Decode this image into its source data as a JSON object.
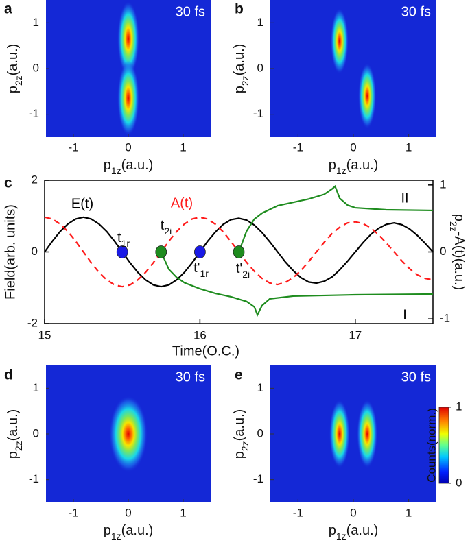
{
  "chart_data": [
    {
      "type": "heatmap",
      "panel": "a",
      "annotation": "30 fs",
      "xlabel": {
        "text": "p",
        "sub": "1z",
        "after": "(a.u.)"
      },
      "ylabel": {
        "text": "p",
        "sub": "2z",
        "after": "(a.u.)"
      },
      "xlim": [
        -1.5,
        1.5
      ],
      "ylim": [
        -1.5,
        1.5
      ],
      "xticks": [
        -1,
        0,
        1
      ],
      "yticks": [
        -1,
        0,
        1
      ],
      "peaks": {
        "x": [
          0,
          0
        ],
        "y": [
          0.65,
          -0.65
        ]
      }
    },
    {
      "type": "heatmap",
      "panel": "b",
      "annotation": "30 fs",
      "xlabel": {
        "text": "p",
        "sub": "1z",
        "after": "(a.u.)"
      },
      "ylabel": {
        "text": "p",
        "sub": "2z",
        "after": "(a.u.)"
      },
      "xlim": [
        -1.5,
        1.5
      ],
      "ylim": [
        -1.5,
        1.5
      ],
      "xticks": [
        -1,
        0,
        1
      ],
      "yticks": [
        -1,
        0,
        1
      ],
      "peaks": {
        "x": [
          -0.25,
          0.25
        ],
        "y": [
          0.6,
          -0.6
        ]
      }
    },
    {
      "type": "line",
      "panel": "c",
      "xlabel": "Time(O.C.)",
      "ylabel": "Field(arb. units)",
      "y2label": {
        "text": "p",
        "sub": "2z",
        "after": "-A(t)(a.u.)"
      },
      "xlim": [
        15,
        17.5
      ],
      "ylim": [
        -2,
        2
      ],
      "y2lim": [
        -1.07,
        1.07
      ],
      "xticks": [
        15,
        16,
        17
      ],
      "yticks": [
        -2,
        0,
        2
      ],
      "y2ticks": [
        -1,
        0,
        1
      ],
      "zero_line": true,
      "x": [
        15,
        15.05,
        15.1,
        15.15,
        15.2,
        15.25,
        15.3,
        15.35,
        15.4,
        15.45,
        15.5,
        15.55,
        15.6,
        15.65,
        15.7,
        15.75,
        15.8,
        15.85,
        15.9,
        15.95,
        16,
        16.05,
        16.1,
        16.15,
        16.2,
        16.25,
        16.3,
        16.35,
        16.4,
        16.45,
        16.5,
        16.55,
        16.6,
        16.65,
        16.7,
        16.75,
        16.8,
        16.85,
        16.9,
        16.95,
        17,
        17.05,
        17.1,
        17.15,
        17.2,
        17.25,
        17.3,
        17.35,
        17.4,
        17.45,
        17.5
      ],
      "series": [
        {
          "name": "E(t)",
          "color": "#000000",
          "values": [
            0,
            0.3,
            0.57,
            0.78,
            0.92,
            0.97,
            0.92,
            0.78,
            0.57,
            0.3,
            0,
            -0.3,
            -0.57,
            -0.78,
            -0.92,
            -0.97,
            -0.92,
            -0.78,
            -0.57,
            -0.3,
            0,
            0.3,
            0.56,
            0.77,
            0.9,
            0.94,
            0.89,
            0.75,
            0.54,
            0.28,
            0,
            -0.28,
            -0.52,
            -0.72,
            -0.84,
            -0.87,
            -0.82,
            -0.7,
            -0.5,
            -0.26,
            0,
            0.26,
            0.49,
            0.66,
            0.77,
            0.81,
            0.76,
            0.64,
            0.46,
            0.24,
            0
          ]
        },
        {
          "name": "A(t)",
          "color": "#ff1a1a",
          "dash": true,
          "values": [
            0.97,
            0.92,
            0.78,
            0.57,
            0.3,
            0,
            -0.3,
            -0.57,
            -0.78,
            -0.92,
            -0.97,
            -0.92,
            -0.78,
            -0.57,
            -0.3,
            0,
            0.3,
            0.57,
            0.78,
            0.92,
            0.97,
            0.92,
            0.77,
            0.56,
            0.29,
            0,
            -0.29,
            -0.54,
            -0.74,
            -0.87,
            -0.91,
            -0.85,
            -0.72,
            -0.52,
            -0.27,
            0,
            0.27,
            0.51,
            0.69,
            0.81,
            0.84,
            0.79,
            0.67,
            0.48,
            0.25,
            0,
            -0.25,
            -0.47,
            -0.64,
            -0.74,
            -0.78
          ]
        },
        {
          "name": "I",
          "color": "#1e8c1e",
          "axis": "y2",
          "x": [
            15.75,
            15.8,
            15.85,
            15.9,
            16,
            16.1,
            16.2,
            16.3,
            16.35,
            16.37,
            16.4,
            16.45,
            16.6,
            17,
            17.5
          ],
          "values": [
            0,
            -0.26,
            -0.38,
            -0.46,
            -0.55,
            -0.62,
            -0.67,
            -0.74,
            -0.82,
            -0.94,
            -0.8,
            -0.7,
            -0.66,
            -0.64,
            -0.63
          ]
        },
        {
          "name": "II",
          "color": "#1e8c1e",
          "axis": "y2",
          "x": [
            16.25,
            16.3,
            16.35,
            16.4,
            16.5,
            16.6,
            16.7,
            16.8,
            16.85,
            16.87,
            16.9,
            16.95,
            17,
            17.2,
            17.5
          ],
          "values": [
            0,
            0.31,
            0.49,
            0.58,
            0.69,
            0.74,
            0.79,
            0.86,
            0.94,
            0.98,
            0.8,
            0.7,
            0.66,
            0.63,
            0.62
          ]
        }
      ],
      "points": {
        "x": [
          15.5,
          15.75,
          16,
          16.25
        ],
        "values": [
          0,
          0,
          0,
          0
        ],
        "colors": [
          "#1a1ae6",
          "#1e8c1e",
          "#1a1ae6",
          "#1e8c1e"
        ],
        "labels": [
          {
            "text": "t",
            "sub": "1r"
          },
          {
            "text": "t",
            "sub": "2i"
          },
          {
            "text": "t'",
            "sub": "1r"
          },
          {
            "text": "t'",
            "sub": "2i"
          }
        ]
      }
    },
    {
      "type": "heatmap",
      "panel": "d",
      "annotation": "30 fs",
      "xlabel": {
        "text": "p",
        "sub": "1z",
        "after": "(a.u.)"
      },
      "ylabel": {
        "text": "p",
        "sub": "2z",
        "after": "(a.u.)"
      },
      "xlim": [
        -1.5,
        1.5
      ],
      "ylim": [
        -1.5,
        1.5
      ],
      "xticks": [
        -1,
        0,
        1
      ],
      "yticks": [
        -1,
        0,
        1
      ],
      "peaks": {
        "x": [
          0
        ],
        "y": [
          0
        ]
      }
    },
    {
      "type": "heatmap",
      "panel": "e",
      "annotation": "30 fs",
      "xlabel": {
        "text": "p",
        "sub": "1z",
        "after": "(a.u.)"
      },
      "ylabel": {
        "text": "p",
        "sub": "2z",
        "after": "(a.u.)"
      },
      "xlim": [
        -1.5,
        1.5
      ],
      "ylim": [
        -1.5,
        1.5
      ],
      "xticks": [
        -1,
        0,
        1
      ],
      "yticks": [
        -1,
        0,
        1
      ],
      "peaks": {
        "x": [
          -0.25,
          0.25
        ],
        "y": [
          0,
          0
        ]
      },
      "colorbar": {
        "label": "Counts(norm.)",
        "lim": [
          0,
          1
        ],
        "ticks": [
          0,
          1
        ]
      }
    }
  ]
}
